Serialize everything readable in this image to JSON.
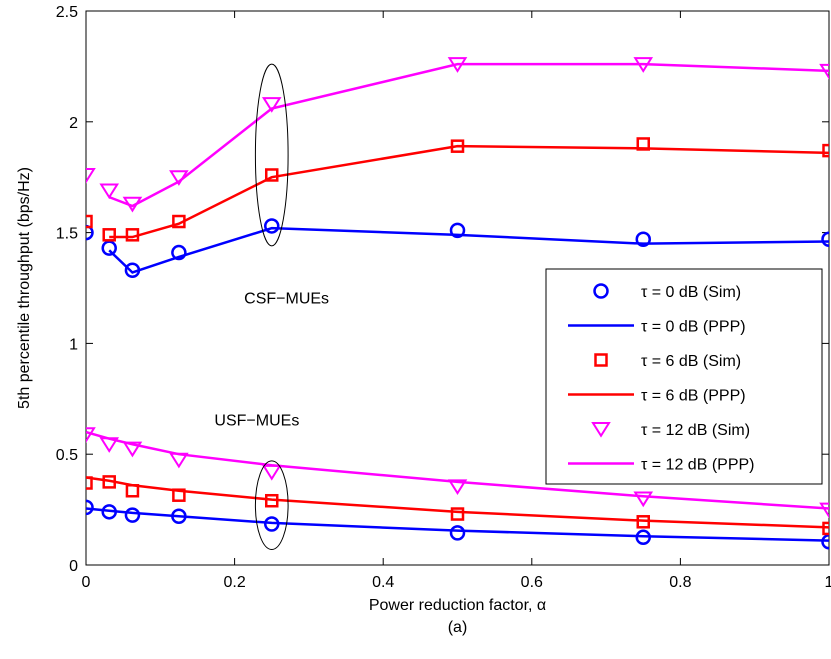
{
  "chart_data": {
    "type": "line",
    "title": "",
    "xlabel": "Power reduction factor, α",
    "ylabel": "5th percentile throughput (bps/Hz)",
    "caption": "(a)",
    "xlim": [
      0,
      1
    ],
    "ylim": [
      0,
      2.5
    ],
    "xticks": [
      0,
      0.2,
      0.4,
      0.6,
      0.8,
      1
    ],
    "xtick_labels": [
      "0",
      "0.2",
      "0.4",
      "0.6",
      "0.8",
      "1"
    ],
    "yticks": [
      0,
      0.5,
      1,
      1.5,
      2,
      2.5
    ],
    "ytick_labels": [
      "0",
      "0.5",
      "1",
      "1.5",
      "2",
      "2.5"
    ],
    "grid": false,
    "legend_position": "right",
    "annotations": [
      {
        "text": "CSF−MUEs",
        "x": 0.27,
        "y": 1.18
      },
      {
        "text": "USF−MUEs",
        "x": 0.23,
        "y": 0.63
      }
    ],
    "ellipses": [
      {
        "cx": 0.25,
        "cy": 1.85,
        "rx": 0.022,
        "ry": 0.41
      },
      {
        "cx": 0.25,
        "cy": 0.27,
        "rx": 0.022,
        "ry": 0.2
      }
    ],
    "series": [
      {
        "name": "τ = 0 dB (Sim)",
        "color": "#0000ff",
        "style": "marker",
        "marker": "circle",
        "x": [
          0,
          0.03125,
          0.0625,
          0.125,
          0.25,
          0.5,
          0.75,
          1
        ],
        "y": [
          1.5,
          1.43,
          1.33,
          1.41,
          1.53,
          1.51,
          1.47,
          1.47
        ]
      },
      {
        "name": "τ = 0 dB (PPP)",
        "color": "#0000ff",
        "style": "line",
        "x": [
          0.03125,
          0.0625,
          0.125,
          0.25,
          0.5,
          0.75,
          1
        ],
        "y": [
          1.42,
          1.32,
          1.39,
          1.52,
          1.49,
          1.45,
          1.46
        ]
      },
      {
        "name": "τ = 6 dB (Sim)",
        "color": "#ff0000",
        "style": "marker",
        "marker": "square",
        "x": [
          0,
          0.03125,
          0.0625,
          0.125,
          0.25,
          0.5,
          0.75,
          1
        ],
        "y": [
          1.55,
          1.49,
          1.49,
          1.55,
          1.76,
          1.89,
          1.9,
          1.87
        ]
      },
      {
        "name": "τ = 6 dB (PPP)",
        "color": "#ff0000",
        "style": "line",
        "x": [
          0.03125,
          0.0625,
          0.125,
          0.25,
          0.5,
          0.75,
          1
        ],
        "y": [
          1.48,
          1.48,
          1.54,
          1.75,
          1.89,
          1.88,
          1.86
        ]
      },
      {
        "name": "τ = 12 dB (Sim)",
        "color": "#ff00ff",
        "style": "marker",
        "marker": "triangle-down",
        "x": [
          0,
          0.03125,
          0.0625,
          0.125,
          0.25,
          0.5,
          0.75,
          1
        ],
        "y": [
          1.76,
          1.69,
          1.63,
          1.75,
          2.08,
          2.26,
          2.26,
          2.23
        ]
      },
      {
        "name": "τ = 12 dB (PPP)",
        "color": "#ff00ff",
        "style": "line",
        "x": [
          0.03125,
          0.0625,
          0.125,
          0.25,
          0.5,
          0.75,
          1
        ],
        "y": [
          1.66,
          1.62,
          1.73,
          2.06,
          2.26,
          2.26,
          2.23
        ]
      },
      {
        "name": "USF τ = 0 dB (Sim)",
        "color": "#0000ff",
        "style": "marker",
        "marker": "circle",
        "legend": false,
        "x": [
          0,
          0.03125,
          0.0625,
          0.125,
          0.25,
          0.5,
          0.75,
          1
        ],
        "y": [
          0.26,
          0.24,
          0.225,
          0.22,
          0.185,
          0.145,
          0.125,
          0.105
        ]
      },
      {
        "name": "USF τ = 0 dB (PPP)",
        "color": "#0000ff",
        "style": "line",
        "legend": false,
        "x": [
          0,
          0.03125,
          0.0625,
          0.125,
          0.25,
          0.5,
          0.75,
          1
        ],
        "y": [
          0.255,
          0.245,
          0.235,
          0.22,
          0.19,
          0.155,
          0.13,
          0.11
        ]
      },
      {
        "name": "USF τ = 6 dB (Sim)",
        "color": "#ff0000",
        "style": "marker",
        "marker": "square",
        "legend": false,
        "x": [
          0,
          0.03125,
          0.0625,
          0.125,
          0.25,
          0.5,
          0.75,
          1
        ],
        "y": [
          0.37,
          0.375,
          0.335,
          0.315,
          0.29,
          0.23,
          0.195,
          0.165
        ]
      },
      {
        "name": "USF τ = 6 dB (PPP)",
        "color": "#ff0000",
        "style": "line",
        "legend": false,
        "x": [
          0,
          0.03125,
          0.0625,
          0.125,
          0.25,
          0.5,
          0.75,
          1
        ],
        "y": [
          0.395,
          0.38,
          0.36,
          0.335,
          0.295,
          0.24,
          0.2,
          0.17
        ]
      },
      {
        "name": "USF τ = 12 dB (Sim)",
        "color": "#ff00ff",
        "style": "marker",
        "marker": "triangle-down",
        "legend": false,
        "x": [
          0,
          0.03125,
          0.0625,
          0.125,
          0.25,
          0.5,
          0.75,
          1
        ],
        "y": [
          0.59,
          0.545,
          0.525,
          0.475,
          0.42,
          0.355,
          0.3,
          0.25
        ]
      },
      {
        "name": "USF τ = 12 dB (PPP)",
        "color": "#ff00ff",
        "style": "line",
        "legend": false,
        "x": [
          0,
          0.03125,
          0.0625,
          0.125,
          0.25,
          0.5,
          0.75,
          1
        ],
        "y": [
          0.6,
          0.57,
          0.545,
          0.5,
          0.45,
          0.375,
          0.31,
          0.255
        ]
      }
    ]
  }
}
